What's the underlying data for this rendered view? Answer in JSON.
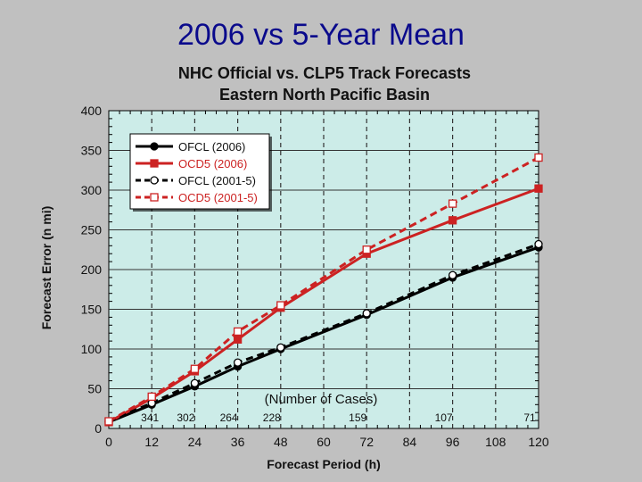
{
  "slide": {
    "title": "2006 vs 5-Year Mean"
  },
  "chart_data": {
    "type": "line",
    "title": "NHC Official vs. CLP5 Track Forecasts",
    "subtitle": "Eastern North Pacific Basin",
    "xlabel": "Forecast Period (h)",
    "ylabel": "Forecast Error (n mi)",
    "x": [
      0,
      12,
      24,
      36,
      48,
      72,
      96,
      120
    ],
    "xticks": [
      0,
      12,
      24,
      36,
      48,
      60,
      72,
      84,
      96,
      108,
      120
    ],
    "yticks": [
      0,
      50,
      100,
      150,
      200,
      250,
      300,
      350,
      400
    ],
    "xlim": [
      0,
      120
    ],
    "ylim": [
      0,
      400
    ],
    "grid": true,
    "legend_position": "top-left",
    "series": [
      {
        "name": "OFCL (2006)",
        "color": "#000000",
        "dashed": false,
        "marker": "filled-circle",
        "values": [
          8,
          30,
          53,
          78,
          100,
          143,
          190,
          228
        ]
      },
      {
        "name": "OCD5 (2006)",
        "color": "#cc2222",
        "dashed": false,
        "marker": "filled-square",
        "values": [
          8,
          38,
          72,
          112,
          152,
          220,
          262,
          302
        ]
      },
      {
        "name": "OFCL (2001-5)",
        "color": "#000000",
        "dashed": true,
        "marker": "open-circle",
        "values": [
          9,
          32,
          57,
          83,
          102,
          145,
          193,
          232
        ]
      },
      {
        "name": "OCD5 (2001-5)",
        "color": "#cc2222",
        "dashed": true,
        "marker": "open-square",
        "values": [
          9,
          40,
          75,
          122,
          155,
          225,
          283,
          341
        ]
      }
    ],
    "cases": {
      "label": "(Number of Cases)",
      "x": [
        12,
        24,
        36,
        48,
        72,
        96,
        120
      ],
      "counts": [
        "341",
        "302",
        "264",
        "228",
        "159",
        "107",
        "71"
      ]
    }
  }
}
